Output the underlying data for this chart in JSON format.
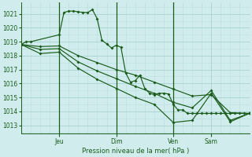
{
  "bg_color": "#d0ecec",
  "grid_major_color": "#a0cccc",
  "grid_minor_color": "#b8dede",
  "line_color": "#1a5c1a",
  "title": "Pression niveau de la mer( hPa )",
  "ylim": [
    1012.4,
    1021.8
  ],
  "yticks": [
    1013,
    1014,
    1015,
    1016,
    1017,
    1018,
    1019,
    1020,
    1021
  ],
  "xlim": [
    0,
    96
  ],
  "day_positions": [
    8,
    32,
    56,
    80
  ],
  "day_vlines": [
    16,
    40,
    64
  ],
  "day_labels": [
    "Jeu",
    "Dim",
    "Ven",
    "Sam"
  ],
  "s1x": [
    0,
    2,
    4,
    16,
    18,
    20,
    22,
    24,
    26,
    28,
    30,
    32,
    34,
    36,
    38,
    40,
    42,
    44,
    46,
    48,
    50,
    52,
    54,
    56,
    58,
    60,
    62,
    64,
    66,
    68,
    70,
    72,
    74,
    76,
    78,
    80,
    82,
    84,
    86,
    88,
    90,
    92,
    94,
    96
  ],
  "s1y": [
    1018.8,
    1019.0,
    1019.0,
    1019.5,
    1021.1,
    1021.2,
    1021.2,
    1021.15,
    1021.1,
    1021.1,
    1021.3,
    1020.65,
    1019.1,
    1018.85,
    1018.55,
    1018.75,
    1018.6,
    1016.75,
    1016.1,
    1016.2,
    1016.6,
    1015.65,
    1015.3,
    1015.2,
    1015.3,
    1015.3,
    1015.25,
    1014.5,
    1014.1,
    1014.1,
    1013.85,
    1013.85,
    1013.85,
    1013.85,
    1013.85,
    1013.85,
    1013.85,
    1013.85,
    1013.85,
    1013.85,
    1013.85,
    1013.85,
    1013.85,
    1013.85
  ],
  "s2x": [
    0,
    8,
    16,
    24,
    32,
    40,
    48,
    56,
    64,
    72,
    80,
    88,
    96
  ],
  "s2y": [
    1018.8,
    1018.65,
    1018.7,
    1018.0,
    1017.5,
    1017.0,
    1016.6,
    1016.1,
    1015.6,
    1015.1,
    1015.2,
    1013.9,
    1013.85
  ],
  "s3x": [
    0,
    8,
    16,
    24,
    32,
    40,
    48,
    56,
    64,
    72,
    80,
    88,
    96
  ],
  "s3y": [
    1018.8,
    1018.45,
    1018.5,
    1017.55,
    1016.9,
    1016.35,
    1015.8,
    1015.3,
    1014.65,
    1014.25,
    1015.5,
    1013.35,
    1013.85
  ],
  "s4x": [
    0,
    8,
    16,
    24,
    32,
    40,
    48,
    56,
    64,
    72,
    80,
    88,
    96
  ],
  "s4y": [
    1018.8,
    1018.15,
    1018.25,
    1017.1,
    1016.3,
    1015.65,
    1015.0,
    1014.5,
    1013.2,
    1013.35,
    1015.3,
    1013.25,
    1013.85
  ]
}
